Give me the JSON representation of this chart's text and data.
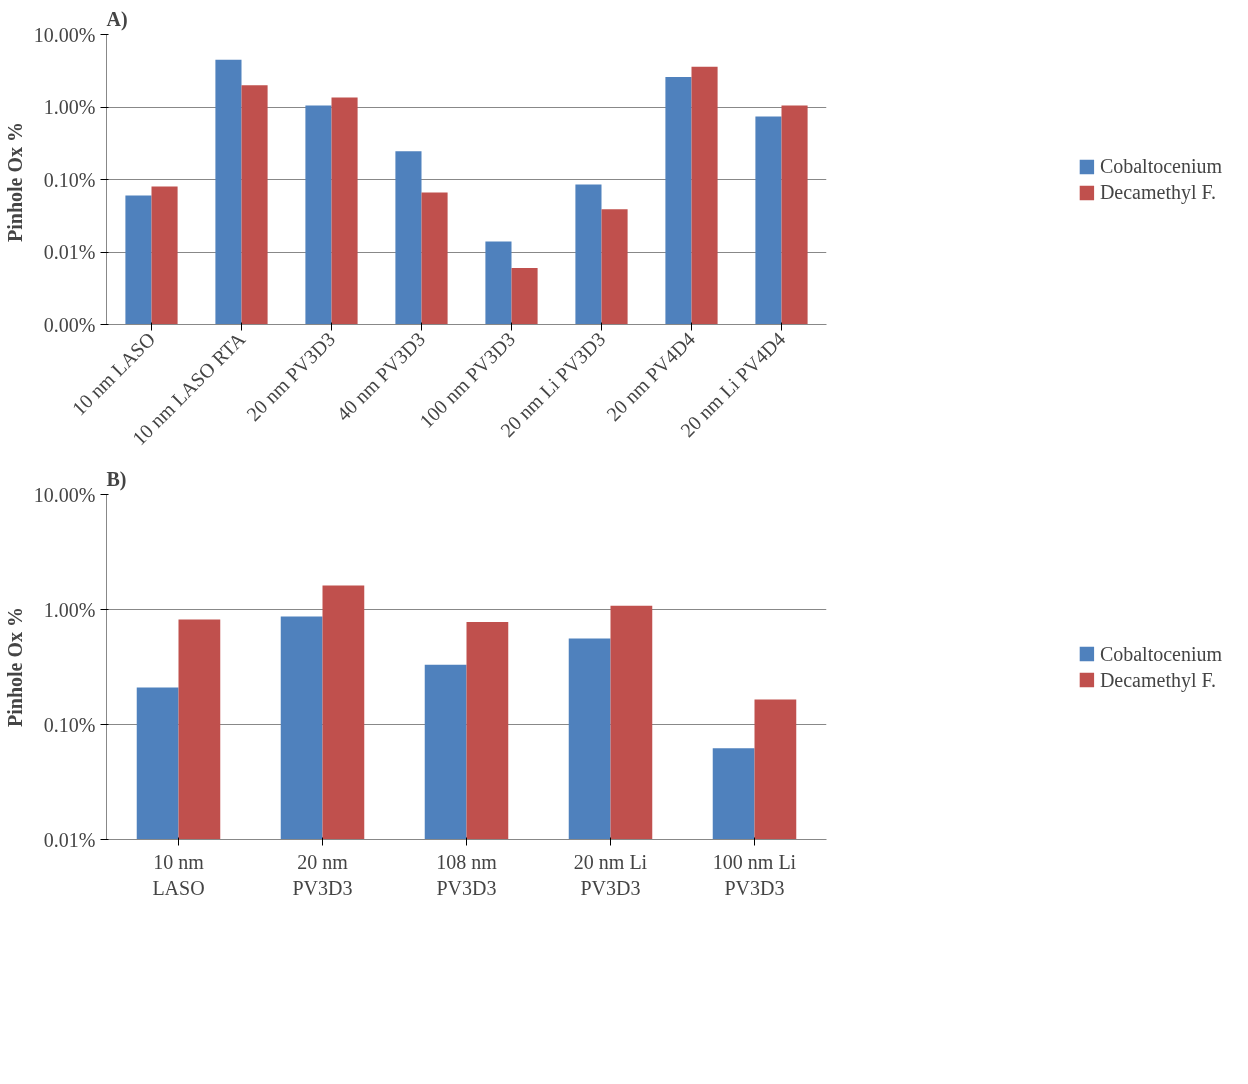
{
  "chart_data": [
    {
      "type": "bar",
      "title": "A)",
      "ylabel": "Pinhole Ox  %",
      "log": "y",
      "grid": "y",
      "legend": "right",
      "categories": [
        "10 nm LASO",
        "10 nm LASO RTA",
        "20 nm PV3D3",
        "40 nm PV3D3",
        "100 nm PV3D3",
        "20 nm Li PV3D3",
        "20 nm PV4D4",
        "20 nm Li PV4D4"
      ],
      "ylim": [
        0.001,
        10
      ],
      "yticks": [
        {
          "value": 0.001,
          "label": "0.00%"
        },
        {
          "value": 0.01,
          "label": "0.01%"
        },
        {
          "value": 0.1,
          "label": "0.10%"
        },
        {
          "value": 1,
          "label": "1.00%"
        },
        {
          "value": 10,
          "label": "10.00%"
        }
      ],
      "series": [
        {
          "name": "Cobaltocenium",
          "color": "#4f81bd",
          "values": [
            0.06,
            4.5,
            1.05,
            0.245,
            0.014,
            0.085,
            2.6,
            0.74
          ]
        },
        {
          "name": "Decamethyl F.",
          "color": "#c0504d",
          "values": [
            0.08,
            2.0,
            1.35,
            0.066,
            0.006,
            0.039,
            3.6,
            1.05
          ]
        }
      ]
    },
    {
      "type": "bar",
      "title": "B)",
      "ylabel": "Pinhole Ox %",
      "log": "y",
      "grid": "y",
      "legend": "right",
      "categories": [
        "10 nm\nLASO",
        "20 nm\nPV3D3",
        "108 nm\nPV3D3",
        "20 nm Li\nPV3D3",
        "100 nm Li\nPV3D3"
      ],
      "ylim": [
        0.01,
        10
      ],
      "yticks": [
        {
          "value": 0.01,
          "label": "0.01%"
        },
        {
          "value": 0.1,
          "label": "0.10%"
        },
        {
          "value": 1,
          "label": "1.00%"
        },
        {
          "value": 10,
          "label": "10.00%"
        }
      ],
      "series": [
        {
          "name": "Cobaltocenium",
          "color": "#4f81bd",
          "values": [
            0.21,
            0.87,
            0.33,
            0.56,
            0.062
          ]
        },
        {
          "name": "Decamethyl F.",
          "color": "#c0504d",
          "values": [
            0.82,
            1.62,
            0.78,
            1.08,
            0.165
          ]
        }
      ]
    }
  ]
}
